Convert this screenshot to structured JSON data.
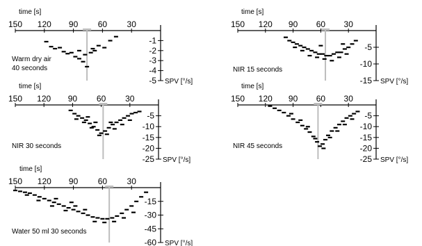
{
  "chart_data": [
    {
      "type": "scatter",
      "label": "Warm dry air\n40 seconds",
      "xlabel": "time [s]",
      "ylabel": "SPV [°/s]",
      "x_ticks": [
        150,
        120,
        90,
        60,
        30
      ],
      "y_ticks": [
        -1,
        -2,
        -3,
        -4,
        -5
      ],
      "xlim": [
        150,
        0
      ],
      "ylim": [
        0,
        -5
      ],
      "marker_x": 76,
      "points": [
        {
          "x": 118,
          "y": -1.1
        },
        {
          "x": 113,
          "y": -1.6
        },
        {
          "x": 109,
          "y": -1.8
        },
        {
          "x": 104,
          "y": -1.7
        },
        {
          "x": 100,
          "y": -2.1
        },
        {
          "x": 96,
          "y": -2.3
        },
        {
          "x": 92,
          "y": -2.2
        },
        {
          "x": 88,
          "y": -2.6
        },
        {
          "x": 84,
          "y": -2.8
        },
        {
          "x": 80,
          "y": -3.1
        },
        {
          "x": 76,
          "y": -3.6
        },
        {
          "x": 72,
          "y": -2.2
        },
        {
          "x": 68,
          "y": -2.0
        },
        {
          "x": 64,
          "y": -1.5
        },
        {
          "x": 58,
          "y": -1.7
        },
        {
          "x": 52,
          "y": -1.0
        },
        {
          "x": 46,
          "y": -0.6
        },
        {
          "x": 84,
          "y": -2.0
        },
        {
          "x": 78,
          "y": -2.4
        },
        {
          "x": 70,
          "y": -1.8
        }
      ]
    },
    {
      "type": "scatter",
      "label": "NIR 15 seconds",
      "xlabel": "time [s]",
      "ylabel": "SPV [°/s]",
      "x_ticks": [
        150,
        120,
        90,
        60,
        30
      ],
      "y_ticks": [
        -5,
        -10,
        -15
      ],
      "xlim": [
        150,
        0
      ],
      "ylim": [
        0,
        -15
      ],
      "marker_x": 55,
      "points": [
        {
          "x": 98,
          "y": -2.0
        },
        {
          "x": 94,
          "y": -3.0
        },
        {
          "x": 90,
          "y": -3.5
        },
        {
          "x": 86,
          "y": -4.0
        },
        {
          "x": 82,
          "y": -4.5
        },
        {
          "x": 78,
          "y": -5.0
        },
        {
          "x": 74,
          "y": -5.5
        },
        {
          "x": 70,
          "y": -6.0
        },
        {
          "x": 66,
          "y": -6.5
        },
        {
          "x": 62,
          "y": -7.0
        },
        {
          "x": 58,
          "y": -7.0
        },
        {
          "x": 54,
          "y": -7.5
        },
        {
          "x": 50,
          "y": -7.5
        },
        {
          "x": 46,
          "y": -7.0
        },
        {
          "x": 42,
          "y": -6.5
        },
        {
          "x": 38,
          "y": -6.5
        },
        {
          "x": 34,
          "y": -5.5
        },
        {
          "x": 30,
          "y": -5.0
        },
        {
          "x": 26,
          "y": -4.0
        },
        {
          "x": 22,
          "y": -3.0
        },
        {
          "x": 88,
          "y": -5.0
        },
        {
          "x": 80,
          "y": -6.0
        },
        {
          "x": 72,
          "y": -7.5
        },
        {
          "x": 64,
          "y": -8.0
        },
        {
          "x": 56,
          "y": -8.5
        },
        {
          "x": 48,
          "y": -9.0
        },
        {
          "x": 40,
          "y": -8.0
        },
        {
          "x": 32,
          "y": -7.0
        },
        {
          "x": 60,
          "y": -4.5
        },
        {
          "x": 36,
          "y": -4.0
        }
      ]
    },
    {
      "type": "scatter",
      "label": "NIR 30 seconds",
      "xlabel": "time [s]",
      "ylabel": "SPV [°/s]",
      "x_ticks": [
        150,
        120,
        90,
        60,
        30
      ],
      "y_ticks": [
        -5,
        -10,
        -15,
        -20,
        -25
      ],
      "xlim": [
        150,
        0
      ],
      "ylim": [
        0,
        -25
      ],
      "marker_x": 58,
      "points": [
        {
          "x": 92,
          "y": -2.5
        },
        {
          "x": 88,
          "y": -4.0
        },
        {
          "x": 84,
          "y": -5.0
        },
        {
          "x": 80,
          "y": -6.0
        },
        {
          "x": 76,
          "y": -7.0
        },
        {
          "x": 72,
          "y": -8.5
        },
        {
          "x": 68,
          "y": -10.0
        },
        {
          "x": 64,
          "y": -11.5
        },
        {
          "x": 60,
          "y": -13.0
        },
        {
          "x": 56,
          "y": -12.0
        },
        {
          "x": 52,
          "y": -10.5
        },
        {
          "x": 48,
          "y": -9.0
        },
        {
          "x": 44,
          "y": -8.0
        },
        {
          "x": 40,
          "y": -7.0
        },
        {
          "x": 36,
          "y": -6.0
        },
        {
          "x": 32,
          "y": -5.0
        },
        {
          "x": 28,
          "y": -4.0
        },
        {
          "x": 24,
          "y": -3.5
        },
        {
          "x": 20,
          "y": -3.0
        },
        {
          "x": 86,
          "y": -6.5
        },
        {
          "x": 78,
          "y": -8.0
        },
        {
          "x": 70,
          "y": -10.5
        },
        {
          "x": 62,
          "y": -14.0
        },
        {
          "x": 54,
          "y": -13.5
        },
        {
          "x": 46,
          "y": -11.0
        },
        {
          "x": 38,
          "y": -9.0
        },
        {
          "x": 30,
          "y": -7.0
        },
        {
          "x": 74,
          "y": -5.5
        },
        {
          "x": 66,
          "y": -8.0
        },
        {
          "x": 50,
          "y": -8.0
        }
      ]
    },
    {
      "type": "scatter",
      "label": "NIR 45 seconds",
      "xlabel": "time [s]",
      "ylabel": "SPV [°/s]",
      "x_ticks": [
        150,
        120,
        90,
        60,
        30
      ],
      "y_ticks": [
        -5,
        -10,
        -15,
        -20,
        -25
      ],
      "xlim": [
        150,
        0
      ],
      "ylim": [
        0,
        -25
      ],
      "marker_x": 63,
      "points": [
        {
          "x": 115,
          "y": -0.5
        },
        {
          "x": 110,
          "y": -1.5
        },
        {
          "x": 105,
          "y": -2.5
        },
        {
          "x": 100,
          "y": -3.5
        },
        {
          "x": 95,
          "y": -5.0
        },
        {
          "x": 90,
          "y": -6.5
        },
        {
          "x": 85,
          "y": -8.0
        },
        {
          "x": 80,
          "y": -9.5
        },
        {
          "x": 76,
          "y": -11.0
        },
        {
          "x": 72,
          "y": -12.5
        },
        {
          "x": 68,
          "y": -14.5
        },
        {
          "x": 64,
          "y": -17.0
        },
        {
          "x": 61,
          "y": -19.0
        },
        {
          "x": 58,
          "y": -18.0
        },
        {
          "x": 55,
          "y": -16.0
        },
        {
          "x": 52,
          "y": -14.0
        },
        {
          "x": 48,
          "y": -12.0
        },
        {
          "x": 44,
          "y": -10.5
        },
        {
          "x": 40,
          "y": -9.0
        },
        {
          "x": 36,
          "y": -7.5
        },
        {
          "x": 32,
          "y": -6.0
        },
        {
          "x": 28,
          "y": -5.0
        },
        {
          "x": 24,
          "y": -4.0
        },
        {
          "x": 20,
          "y": -3.0
        },
        {
          "x": 92,
          "y": -4.0
        },
        {
          "x": 82,
          "y": -7.0
        },
        {
          "x": 74,
          "y": -10.0
        },
        {
          "x": 66,
          "y": -15.5
        },
        {
          "x": 57,
          "y": -20.0
        },
        {
          "x": 50,
          "y": -15.0
        },
        {
          "x": 42,
          "y": -12.0
        },
        {
          "x": 34,
          "y": -9.0
        },
        {
          "x": 26,
          "y": -6.5
        }
      ]
    },
    {
      "type": "scatter",
      "label": "Water 50 ml 30 seconds",
      "xlabel": "time [s]",
      "ylabel": "SPV [°/s]",
      "x_ticks": [
        150,
        120,
        90,
        60,
        30
      ],
      "y_ticks": [
        -15,
        -30,
        -45,
        -60
      ],
      "xlim": [
        150,
        0
      ],
      "ylim": [
        0,
        -60
      ],
      "marker_x": 53,
      "points": [
        {
          "x": 150,
          "y": -3
        },
        {
          "x": 145,
          "y": -4
        },
        {
          "x": 140,
          "y": -5
        },
        {
          "x": 135,
          "y": -6
        },
        {
          "x": 130,
          "y": -8
        },
        {
          "x": 125,
          "y": -10
        },
        {
          "x": 120,
          "y": -12
        },
        {
          "x": 115,
          "y": -14
        },
        {
          "x": 110,
          "y": -16
        },
        {
          "x": 105,
          "y": -18
        },
        {
          "x": 100,
          "y": -20
        },
        {
          "x": 95,
          "y": -22
        },
        {
          "x": 90,
          "y": -24
        },
        {
          "x": 85,
          "y": -26
        },
        {
          "x": 80,
          "y": -28
        },
        {
          "x": 75,
          "y": -30
        },
        {
          "x": 70,
          "y": -32
        },
        {
          "x": 65,
          "y": -33
        },
        {
          "x": 60,
          "y": -34
        },
        {
          "x": 55,
          "y": -34
        },
        {
          "x": 50,
          "y": -33
        },
        {
          "x": 45,
          "y": -31
        },
        {
          "x": 40,
          "y": -28
        },
        {
          "x": 35,
          "y": -24
        },
        {
          "x": 30,
          "y": -20
        },
        {
          "x": 25,
          "y": -15
        },
        {
          "x": 20,
          "y": -10
        },
        {
          "x": 15,
          "y": -5
        },
        {
          "x": 138,
          "y": -8
        },
        {
          "x": 126,
          "y": -14
        },
        {
          "x": 112,
          "y": -20
        },
        {
          "x": 98,
          "y": -25
        },
        {
          "x": 88,
          "y": -20
        },
        {
          "x": 78,
          "y": -24
        },
        {
          "x": 68,
          "y": -37
        },
        {
          "x": 58,
          "y": -38
        },
        {
          "x": 48,
          "y": -37
        },
        {
          "x": 38,
          "y": -33
        },
        {
          "x": 28,
          "y": -27
        },
        {
          "x": 108,
          "y": -12
        },
        {
          "x": 92,
          "y": -16
        }
      ]
    }
  ]
}
